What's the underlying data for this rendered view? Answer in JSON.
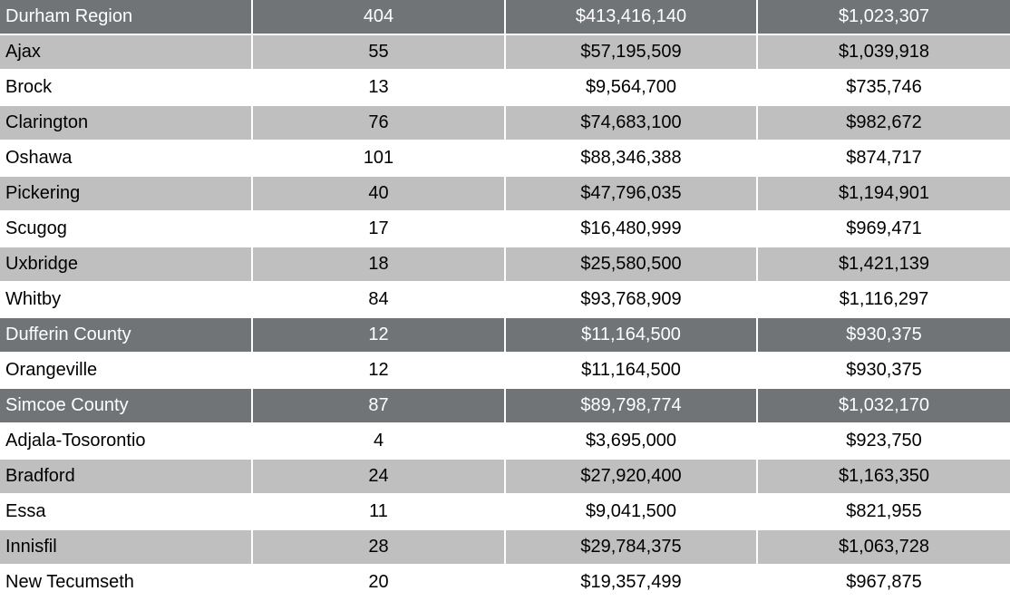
{
  "table": {
    "rows": [
      {
        "name": "Durham Region",
        "sales": "404",
        "volume": "$413,416,140",
        "average": "$1,023,307",
        "style": "region"
      },
      {
        "name": "Ajax",
        "sales": "55",
        "volume": "$57,195,509",
        "average": "$1,039,918",
        "style": "shade"
      },
      {
        "name": "Brock",
        "sales": "13",
        "volume": "$9,564,700",
        "average": "$735,746",
        "style": "plain"
      },
      {
        "name": "Clarington",
        "sales": "76",
        "volume": "$74,683,100",
        "average": "$982,672",
        "style": "shade"
      },
      {
        "name": "Oshawa",
        "sales": "101",
        "volume": "$88,346,388",
        "average": "$874,717",
        "style": "plain"
      },
      {
        "name": "Pickering",
        "sales": "40",
        "volume": "$47,796,035",
        "average": "$1,194,901",
        "style": "shade"
      },
      {
        "name": "Scugog",
        "sales": "17",
        "volume": "$16,480,999",
        "average": "$969,471",
        "style": "plain"
      },
      {
        "name": "Uxbridge",
        "sales": "18",
        "volume": "$25,580,500",
        "average": "$1,421,139",
        "style": "shade"
      },
      {
        "name": "Whitby",
        "sales": "84",
        "volume": "$93,768,909",
        "average": "$1,116,297",
        "style": "plain"
      },
      {
        "name": "Dufferin County",
        "sales": "12",
        "volume": "$11,164,500",
        "average": "$930,375",
        "style": "region"
      },
      {
        "name": "Orangeville",
        "sales": "12",
        "volume": "$11,164,500",
        "average": "$930,375",
        "style": "plain"
      },
      {
        "name": "Simcoe County",
        "sales": "87",
        "volume": "$89,798,774",
        "average": "$1,032,170",
        "style": "region"
      },
      {
        "name": "Adjala-Tosorontio",
        "sales": "4",
        "volume": "$3,695,000",
        "average": "$923,750",
        "style": "plain"
      },
      {
        "name": "Bradford",
        "sales": "24",
        "volume": "$27,920,400",
        "average": "$1,163,350",
        "style": "shade"
      },
      {
        "name": "Essa",
        "sales": "11",
        "volume": "$9,041,500",
        "average": "$821,955",
        "style": "plain"
      },
      {
        "name": "Innisfil",
        "sales": "28",
        "volume": "$29,784,375",
        "average": "$1,063,728",
        "style": "shade"
      },
      {
        "name": "New Tecumseth",
        "sales": "20",
        "volume": "$19,357,499",
        "average": "$967,875",
        "style": "plain"
      }
    ]
  },
  "colors": {
    "region_bg": "#717477",
    "region_text": "#ffffff",
    "shade_bg": "#bfbfbf",
    "plain_bg": "#ffffff",
    "text": "#000000"
  }
}
